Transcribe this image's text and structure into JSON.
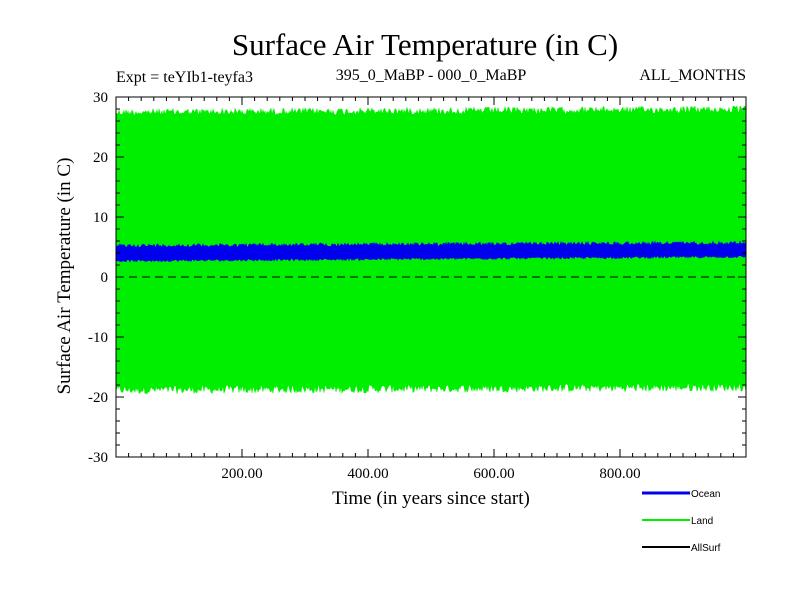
{
  "chart_data": {
    "type": "area",
    "title": "Surface Air Temperature (in C)",
    "subtitle_left": "Expt = teYIb1-teyfa3",
    "subtitle_center": "395_0_MaBP - 000_0_MaBP",
    "subtitle_right": "ALL_MONTHS",
    "xlabel": "Time (in years since start)",
    "ylabel": "Surface Air Temperature (in C)",
    "xlim": [
      0,
      1000
    ],
    "ylim": [
      -30,
      30
    ],
    "x_ticks": [
      200,
      400,
      600,
      800
    ],
    "x_tick_labels": [
      "200.00",
      "400.00",
      "600.00",
      "800.00"
    ],
    "y_ticks": [
      -30,
      -20,
      -10,
      0,
      10,
      20,
      30
    ],
    "y_tick_labels": [
      "-30",
      "-20",
      "-10",
      "0",
      "10",
      "20",
      "30"
    ],
    "reference_line": {
      "y": 0,
      "style": "dashed"
    },
    "series": [
      {
        "name": "Land",
        "color": "#00ee00",
        "x": [
          0,
          1000
        ],
        "min": [
          -19.5,
          -19.0
        ],
        "max": [
          28.0,
          28.5
        ]
      },
      {
        "name": "Ocean",
        "color": "#0000ee",
        "x": [
          0,
          1000
        ],
        "min": [
          2.5,
          3.2
        ],
        "max": [
          5.5,
          6.0
        ]
      },
      {
        "name": "AllSurf",
        "color": "#000000",
        "x": [],
        "values": []
      }
    ],
    "legend": {
      "placement": "bottom-right",
      "entries": [
        "Ocean",
        "Land",
        "AllSurf"
      ]
    }
  }
}
